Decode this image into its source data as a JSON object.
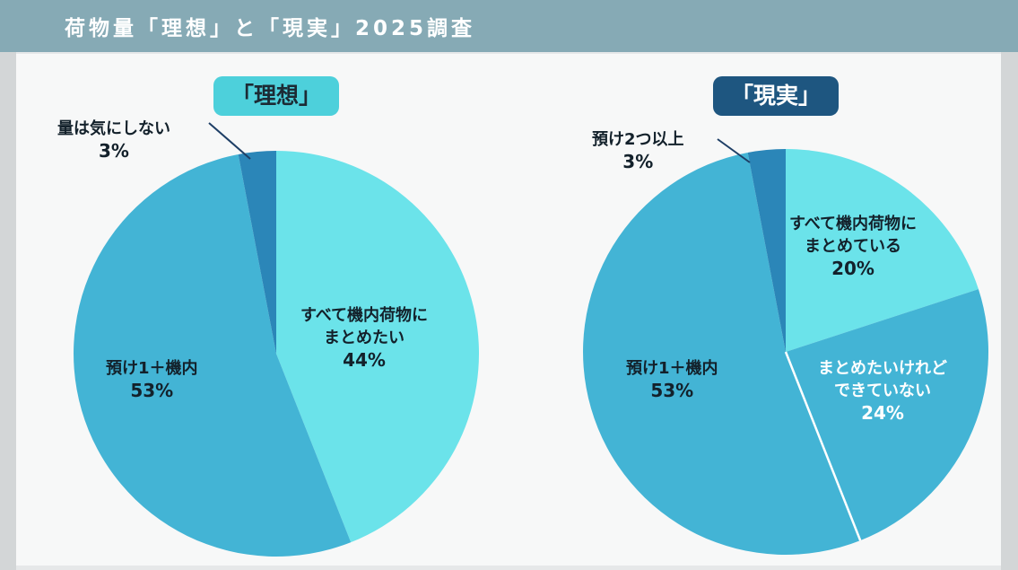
{
  "header": {
    "title": "荷物量「理想」と「現実」2025調査"
  },
  "chart_data": [
    {
      "type": "pie",
      "title": "「理想」",
      "slices": [
        {
          "label_lines": [
            "すべて機内荷物に",
            "まとめたい"
          ],
          "pct_text": "44%",
          "value": 44,
          "color": "#6be3ea"
        },
        {
          "label_lines": [
            "預け1＋機内"
          ],
          "pct_text": "53%",
          "value": 53,
          "color": "#43b4d5"
        },
        {
          "label_lines": [
            "量は気にしない"
          ],
          "pct_text": "3%",
          "value": 3,
          "color": "#2b86b8"
        }
      ]
    },
    {
      "type": "pie",
      "title": "「現実」",
      "slices": [
        {
          "label_lines": [
            "すべて機内荷物に",
            "まとめている"
          ],
          "pct_text": "20%",
          "value": 20,
          "color": "#6be3ea"
        },
        {
          "label_lines": [
            "まとめたいけれど",
            "できていない"
          ],
          "pct_text": "24%",
          "value": 24,
          "color": "#43b4d5"
        },
        {
          "label_lines": [
            "預け1＋機内"
          ],
          "pct_text": "53%",
          "value": 53,
          "color": "#43b4d5"
        },
        {
          "label_lines": [
            "預け2つ以上"
          ],
          "pct_text": "3%",
          "value": 3,
          "color": "#2b86b8"
        }
      ]
    }
  ]
}
